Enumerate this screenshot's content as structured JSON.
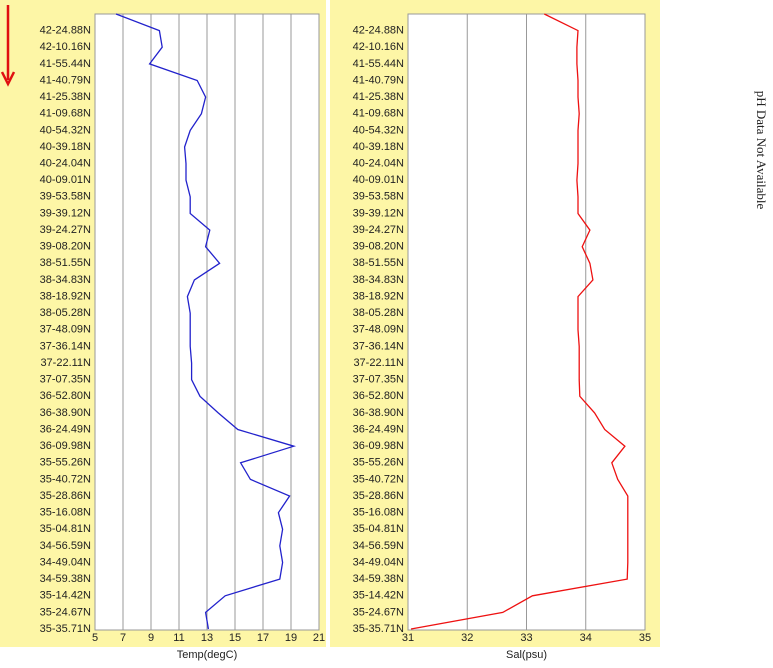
{
  "chart_data": [
    {
      "type": "line",
      "xlabel": "Temp(degC)",
      "color": "#2222cc",
      "categories": [
        null,
        "42-24.88N",
        "42-10.16N",
        "41-55.44N",
        "41-40.79N",
        "41-25.38N",
        "41-09.68N",
        "40-54.32N",
        "40-39.18N",
        "40-24.04N",
        "40-09.01N",
        "39-53.58N",
        "39-39.12N",
        "39-24.27N",
        "39-08.20N",
        "38-51.55N",
        "38-34.83N",
        "38-18.92N",
        "38-05.28N",
        "37-48.09N",
        "37-36.14N",
        "37-22.11N",
        "37-07.35N",
        "36-52.80N",
        "36-38.90N",
        "36-24.49N",
        "36-09.98N",
        "35-55.26N",
        "35-40.72N",
        "35-28.86N",
        "35-16.08N",
        "35-04.81N",
        "34-56.59N",
        "34-49.04N",
        "34-59.38N",
        "35-14.42N",
        "35-24.67N",
        "35-35.71N"
      ],
      "values": [
        6.5,
        9.6,
        9.8,
        8.9,
        12.3,
        12.9,
        12.6,
        11.8,
        11.4,
        11.5,
        11.5,
        11.8,
        11.8,
        13.2,
        12.9,
        13.9,
        12.1,
        11.6,
        11.8,
        11.8,
        11.8,
        11.9,
        11.9,
        12.5,
        13.8,
        15.2,
        19.2,
        15.4,
        16.1,
        18.9,
        18.1,
        18.4,
        18.2,
        18.4,
        18.2,
        14.3,
        12.9,
        13.1
      ],
      "xlim": [
        5,
        21
      ],
      "xticks": [
        5,
        7,
        9,
        11,
        13,
        15,
        17,
        19,
        21
      ],
      "grid": true
    },
    {
      "type": "line",
      "xlabel": "Sal(psu)",
      "color": "#ee1111",
      "categories": [
        null,
        "42-24.88N",
        "42-10.16N",
        "41-55.44N",
        "41-40.79N",
        "41-25.38N",
        "41-09.68N",
        "40-54.32N",
        "40-39.18N",
        "40-24.04N",
        "40-09.01N",
        "39-53.58N",
        "39-39.12N",
        "39-24.27N",
        "39-08.20N",
        "38-51.55N",
        "38-34.83N",
        "38-18.92N",
        "38-05.28N",
        "37-48.09N",
        "37-36.14N",
        "37-22.11N",
        "37-07.35N",
        "36-52.80N",
        "36-38.90N",
        "36-24.49N",
        "36-09.98N",
        "35-55.26N",
        "35-40.72N",
        "35-28.86N",
        "35-16.08N",
        "35-04.81N",
        "34-56.59N",
        "34-49.04N",
        "34-59.38N",
        "35-14.42N",
        "35-24.67N",
        "35-35.71N"
      ],
      "values": [
        33.3,
        33.87,
        33.85,
        33.85,
        33.87,
        33.87,
        33.89,
        33.87,
        33.87,
        33.87,
        33.85,
        33.87,
        33.87,
        34.07,
        33.94,
        34.07,
        34.12,
        33.87,
        33.87,
        33.87,
        33.89,
        33.89,
        33.89,
        33.9,
        34.15,
        34.32,
        34.66,
        34.44,
        34.54,
        34.71,
        34.71,
        34.71,
        34.71,
        34.71,
        34.7,
        33.1,
        32.6,
        31.05
      ],
      "xlim": [
        31,
        35
      ],
      "xticks": [
        31,
        32,
        33,
        34,
        35
      ],
      "grid": true
    }
  ],
  "annotation": "pH Data Not Available"
}
